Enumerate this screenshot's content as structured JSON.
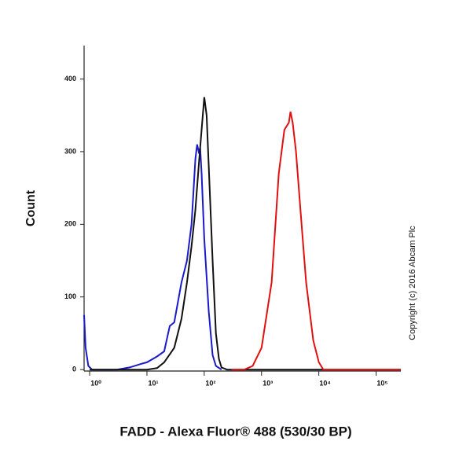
{
  "chart_data": {
    "type": "line",
    "ylabel": "Count",
    "xlabel": "FADD - Alexa Fluor® 488 (530/30 BP)",
    "annotation": "Copyright (c) 2016 Abcam Plc",
    "xscale": "log",
    "xlim": [
      0.8,
      270000
    ],
    "ylim": [
      -2,
      446
    ],
    "xticks": [
      {
        "value": 1,
        "label": "10⁰"
      },
      {
        "value": 10,
        "label": "10¹"
      },
      {
        "value": 100,
        "label": "10²"
      },
      {
        "value": 1000,
        "label": "10³"
      },
      {
        "value": 10000,
        "label": "10⁴"
      },
      {
        "value": 100000,
        "label": "10⁵"
      }
    ],
    "yticks": [
      0,
      100,
      200,
      300,
      400
    ],
    "series": [
      {
        "color": "#1a1acc",
        "x": [
          0.8,
          0.85,
          0.95,
          1.1,
          3,
          5,
          8,
          10,
          15,
          20,
          25,
          30,
          40,
          50,
          60,
          70,
          75,
          80,
          85,
          90,
          100,
          120,
          140,
          160,
          200
        ],
        "values": [
          75,
          30,
          5,
          0,
          0,
          3,
          8,
          10,
          18,
          25,
          60,
          65,
          120,
          150,
          200,
          290,
          310,
          300,
          305,
          270,
          180,
          80,
          20,
          5,
          0
        ]
      },
      {
        "color": "#111111",
        "x": [
          1,
          10,
          15,
          20,
          30,
          40,
          50,
          60,
          70,
          80,
          90,
          100,
          110,
          120,
          140,
          160,
          180,
          200,
          250,
          270000
        ],
        "values": [
          0,
          0,
          2,
          10,
          30,
          70,
          120,
          170,
          220,
          280,
          330,
          375,
          350,
          280,
          150,
          50,
          15,
          3,
          0,
          0
        ]
      },
      {
        "color": "#e01010",
        "x": [
          300,
          500,
          700,
          1000,
          1500,
          2000,
          2500,
          3000,
          3200,
          3500,
          4000,
          5000,
          6000,
          8000,
          10000,
          12000,
          270000
        ],
        "values": [
          0,
          0,
          5,
          30,
          120,
          270,
          330,
          340,
          355,
          340,
          300,
          200,
          120,
          40,
          10,
          0,
          0
        ]
      }
    ]
  }
}
